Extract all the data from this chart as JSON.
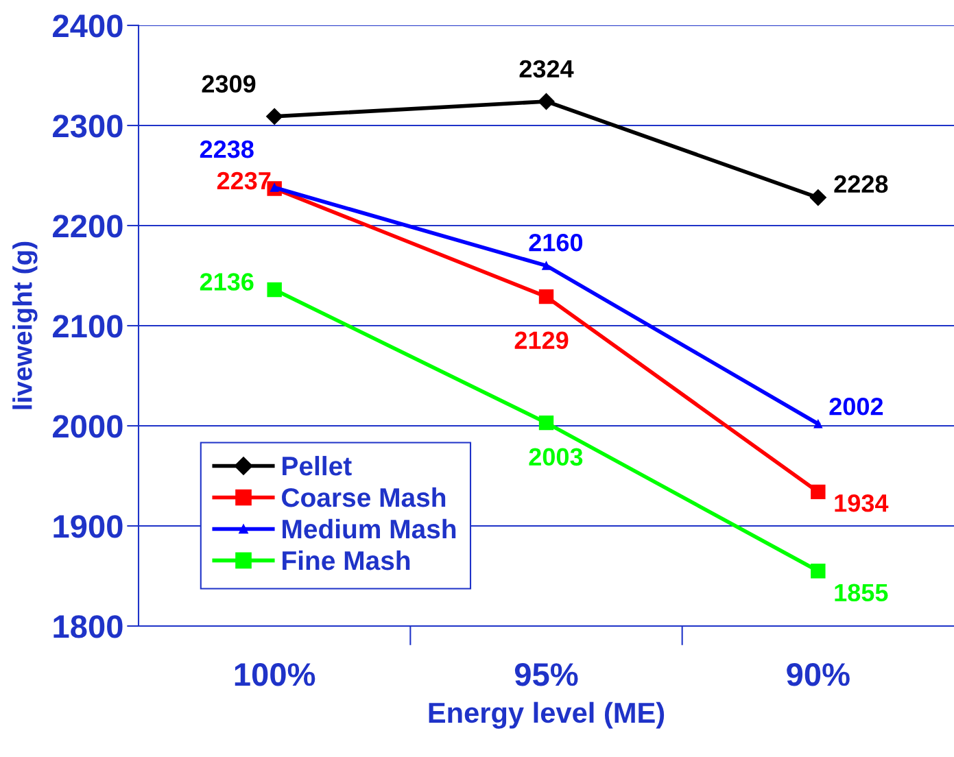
{
  "chart_data": {
    "type": "line",
    "xlabel": "Energy level (ME)",
    "ylabel": "liveweight (g)",
    "categories": [
      "100%",
      "95%",
      "90%"
    ],
    "series": [
      {
        "name": "Pellet",
        "color": "#000000",
        "marker": "diamond",
        "values": [
          2309,
          2324,
          2228
        ]
      },
      {
        "name": "Coarse Mash",
        "color": "#ff0000",
        "marker": "square",
        "values": [
          2237,
          2129,
          1934
        ]
      },
      {
        "name": "Medium Mash",
        "color": "#0000ff",
        "marker": "triangle",
        "values": [
          2238,
          2160,
          2002
        ]
      },
      {
        "name": "Fine Mash",
        "color": "#00ff00",
        "marker": "square",
        "values": [
          2136,
          2003,
          1855
        ]
      }
    ],
    "ylim": [
      1800,
      2400
    ],
    "yticks": [
      1800,
      1900,
      2000,
      2100,
      2200,
      2300,
      2400
    ],
    "grid": "y",
    "legend": "bottom left",
    "data_labels": true,
    "line_style": "solid"
  }
}
